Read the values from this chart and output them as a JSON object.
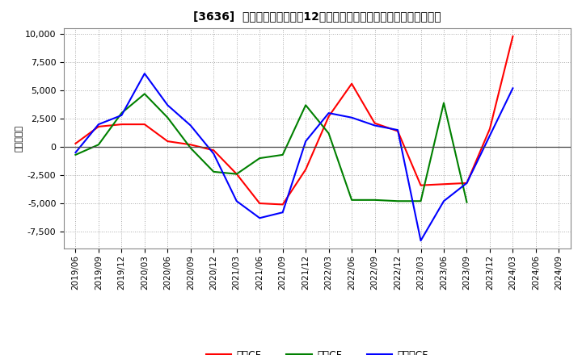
{
  "title": "[3636]  キャッシュフローの12か月移動合計の対前年同期増減額の推移",
  "ylabel": "（百万円）",
  "background_color": "#ffffff",
  "plot_bg_color": "#ffffff",
  "grid_color": "#aaaaaa",
  "ylim": [
    -9000,
    10500
  ],
  "yticks": [
    -7500,
    -5000,
    -2500,
    0,
    2500,
    5000,
    7500,
    10000
  ],
  "x_labels": [
    "2019/06",
    "2019/09",
    "2019/12",
    "2020/03",
    "2020/06",
    "2020/09",
    "2020/12",
    "2021/03",
    "2021/06",
    "2021/09",
    "2021/12",
    "2022/03",
    "2022/06",
    "2022/09",
    "2022/12",
    "2023/03",
    "2023/06",
    "2023/09",
    "2023/12",
    "2024/03",
    "2024/06",
    "2024/09"
  ],
  "eigyo_cf": [
    300,
    1800,
    2000,
    2000,
    500,
    200,
    -300,
    -2400,
    -5000,
    -5100,
    -2000,
    2700,
    5600,
    2100,
    1400,
    -3400,
    -3300,
    -3200,
    1600,
    9800,
    null,
    null
  ],
  "toshi_cf": [
    -700,
    200,
    3000,
    4700,
    2600,
    -100,
    -2200,
    -2400,
    -1000,
    -700,
    3700,
    1200,
    -4700,
    -4700,
    -4800,
    -4800,
    3900,
    -4900,
    null,
    null,
    null,
    null
  ],
  "free_cf": [
    -500,
    2000,
    2800,
    6500,
    3700,
    1900,
    -600,
    -4800,
    -6300,
    -5800,
    500,
    3000,
    2600,
    1900,
    1500,
    -8300,
    -4800,
    -3200,
    1000,
    5200,
    null,
    null
  ],
  "eigyo_color": "#ff0000",
  "toshi_color": "#008000",
  "free_color": "#0000ff",
  "legend_labels": [
    "営業CF",
    "投資CF",
    "フリーCF"
  ]
}
